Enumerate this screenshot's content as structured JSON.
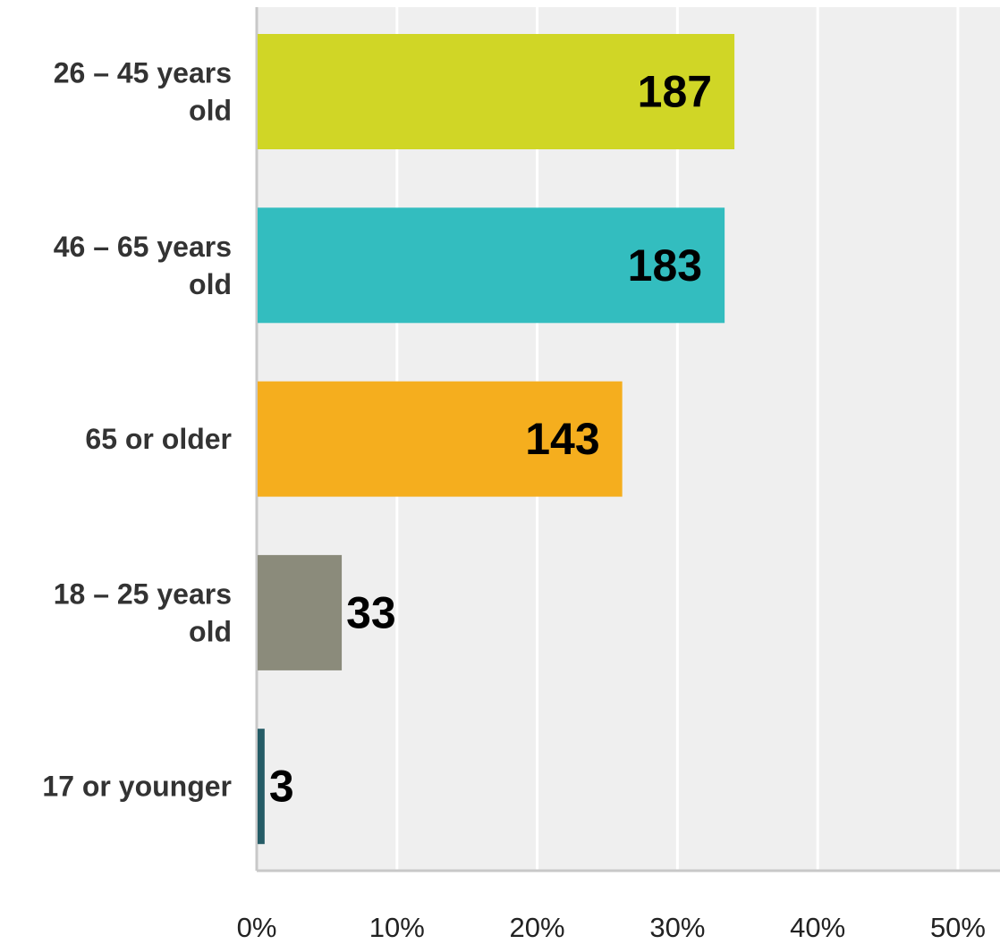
{
  "chart_data": {
    "type": "bar",
    "orientation": "horizontal",
    "categories": [
      [
        "26 – 45 years",
        "old"
      ],
      [
        "46 – 65 years",
        "old"
      ],
      [
        "65 or older"
      ],
      [
        "18 – 25 years",
        "old"
      ],
      [
        "17 or younger"
      ]
    ],
    "percent_values": [
      34.0,
      33.3,
      26.0,
      6.0,
      0.5
    ],
    "data_labels": [
      "187",
      "183",
      "143",
      "33",
      "3"
    ],
    "colors": [
      "#d0d626",
      "#33bdbf",
      "#f5ae1e",
      "#8b8b7b",
      "#255c66"
    ],
    "x_ticks": [
      "0%",
      "10%",
      "20%",
      "30%",
      "40%",
      "50%"
    ],
    "xlim": [
      0,
      53
    ],
    "grid": true,
    "plot_background": "#efefef",
    "gridline_color": "#ffffff"
  }
}
